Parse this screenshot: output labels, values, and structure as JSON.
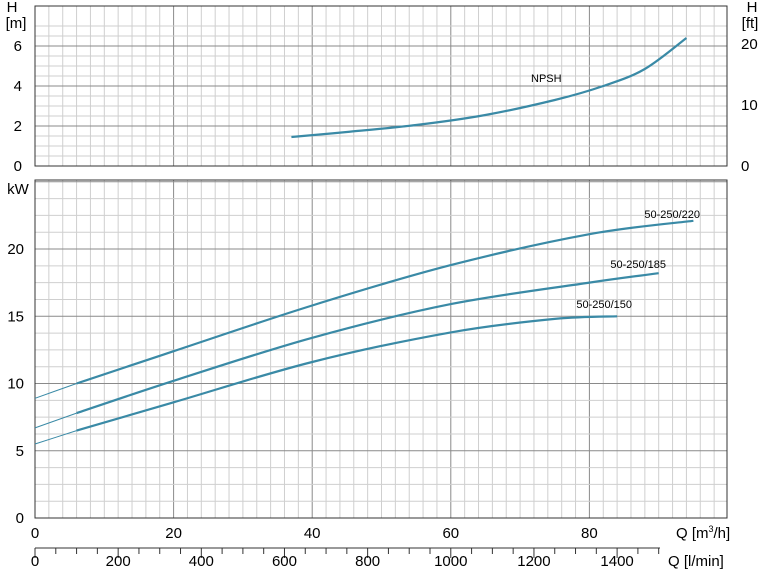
{
  "chart_data": [
    {
      "type": "line",
      "title": "",
      "ylabel": "H [m]",
      "y2label": "H [ft]",
      "ylim": [
        0,
        7
      ],
      "y2lim": [
        0,
        23
      ],
      "xlim": [
        0,
        100
      ],
      "yticks": [
        0,
        2,
        4,
        6
      ],
      "y2ticks": [
        0,
        10,
        20
      ],
      "grid": true,
      "series": [
        {
          "name": "NPSH",
          "color": "#3a8aa6",
          "x": [
            37,
            45,
            55,
            65,
            75,
            82,
            88,
            94
          ],
          "y": [
            1.45,
            1.7,
            2.05,
            2.55,
            3.3,
            4.0,
            4.85,
            6.4
          ]
        }
      ]
    },
    {
      "type": "line",
      "title": "",
      "ylabel": "kW",
      "xlabel": "Q [m³/h]",
      "x2label": "Q [l/min]",
      "xlim": [
        0,
        100
      ],
      "ylim": [
        0,
        25
      ],
      "xticks": [
        0,
        20,
        40,
        60,
        80
      ],
      "x2ticks": [
        0,
        200,
        400,
        600,
        800,
        1000,
        1200,
        1400
      ],
      "yticks": [
        0,
        5,
        10,
        15,
        20
      ],
      "grid": true,
      "series": [
        {
          "name": "50-250/220",
          "color": "#3a8aa6",
          "x": [
            0,
            6,
            20,
            40,
            60,
            80,
            95
          ],
          "y": [
            8.9,
            10.0,
            12.4,
            15.8,
            18.8,
            21.1,
            22.1
          ]
        },
        {
          "name": "50-250/185",
          "color": "#3a8aa6",
          "x": [
            0,
            6,
            20,
            40,
            60,
            80,
            90
          ],
          "y": [
            6.7,
            7.8,
            10.2,
            13.4,
            15.9,
            17.5,
            18.2
          ]
        },
        {
          "name": "50-250/150",
          "color": "#3a8aa6",
          "x": [
            0,
            6,
            20,
            40,
            60,
            75,
            84
          ],
          "y": [
            5.5,
            6.5,
            8.6,
            11.6,
            13.8,
            14.8,
            15.0
          ]
        }
      ]
    }
  ]
}
